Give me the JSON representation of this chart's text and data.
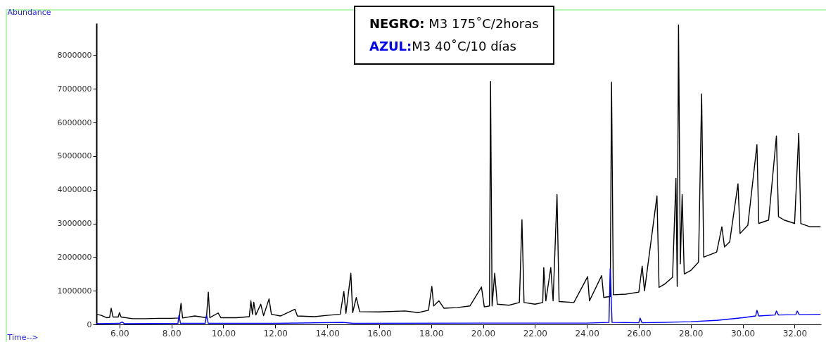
{
  "chart_data": {
    "type": "line",
    "xlabel": "Time-->",
    "ylabel": "Abundance",
    "xlim": [
      5.11,
      33.02
    ],
    "ylim": [
      0,
      8950000
    ],
    "xticks": [
      {
        "value": 6,
        "label": "6.00"
      },
      {
        "value": 8,
        "label": "8.00"
      },
      {
        "value": 10,
        "label": "10.00"
      },
      {
        "value": 12,
        "label": "12.00"
      },
      {
        "value": 14,
        "label": "14.00"
      },
      {
        "value": 16,
        "label": "16.00"
      },
      {
        "value": 18,
        "label": "18.00"
      },
      {
        "value": 20,
        "label": "20.00"
      },
      {
        "value": 22,
        "label": "22.00"
      },
      {
        "value": 24,
        "label": "24.00"
      },
      {
        "value": 26,
        "label": "26.00"
      },
      {
        "value": 28,
        "label": "28.00"
      },
      {
        "value": 30,
        "label": "30.00"
      },
      {
        "value": 32,
        "label": "32.00"
      }
    ],
    "yticks": [
      0,
      1000000,
      2000000,
      3000000,
      4000000,
      5000000,
      6000000,
      7000000,
      8000000
    ],
    "grid": false,
    "legend": "top",
    "marker": "none",
    "line_style": "solid",
    "series": [
      {
        "name": "NEGRO: M3 175˚C/2horas",
        "color": "#000000",
        "x": [
          5.11,
          5.3,
          5.5,
          5.62,
          5.68,
          5.75,
          5.95,
          6.0,
          6.06,
          6.5,
          7.0,
          7.5,
          8.0,
          8.3,
          8.37,
          8.43,
          8.9,
          9.35,
          9.42,
          9.48,
          9.8,
          9.9,
          10.5,
          11.0,
          11.06,
          11.12,
          11.17,
          11.25,
          11.44,
          11.55,
          11.76,
          11.85,
          12.2,
          12.76,
          12.85,
          13.5,
          14.0,
          14.5,
          14.64,
          14.72,
          14.91,
          14.98,
          15.12,
          15.25,
          16.0,
          17.0,
          17.5,
          17.9,
          18.03,
          18.1,
          18.3,
          18.5,
          19.0,
          19.5,
          19.94,
          20.05,
          20.25,
          20.29,
          20.35,
          20.45,
          20.55,
          21.0,
          21.4,
          21.5,
          21.58,
          22.0,
          22.3,
          22.34,
          22.42,
          22.61,
          22.7,
          22.85,
          22.93,
          23.5,
          24.03,
          24.1,
          24.57,
          24.65,
          24.9,
          24.95,
          25.02,
          25.5,
          26.0,
          26.13,
          26.22,
          26.7,
          26.78,
          27.0,
          27.3,
          27.43,
          27.48,
          27.53,
          27.6,
          27.67,
          27.75,
          28.0,
          28.3,
          28.42,
          28.5,
          29.0,
          29.2,
          29.3,
          29.5,
          29.82,
          29.9,
          30.2,
          30.55,
          30.62,
          31.0,
          31.3,
          31.38,
          31.6,
          32.0,
          32.16,
          32.24,
          32.6,
          33.0
        ],
        "values": [
          300000,
          270000,
          200000,
          210000,
          480000,
          220000,
          220000,
          350000,
          220000,
          170000,
          170000,
          180000,
          180000,
          190000,
          630000,
          190000,
          250000,
          200000,
          960000,
          200000,
          340000,
          200000,
          200000,
          230000,
          700000,
          300000,
          660000,
          280000,
          600000,
          260000,
          760000,
          300000,
          250000,
          450000,
          250000,
          230000,
          270000,
          300000,
          980000,
          330000,
          1520000,
          350000,
          800000,
          380000,
          370000,
          400000,
          350000,
          420000,
          1130000,
          550000,
          700000,
          480000,
          500000,
          550000,
          1110000,
          520000,
          550000,
          7220000,
          550000,
          1520000,
          600000,
          570000,
          650000,
          3110000,
          650000,
          600000,
          650000,
          1690000,
          700000,
          1690000,
          700000,
          3860000,
          680000,
          650000,
          1420000,
          700000,
          1450000,
          800000,
          830000,
          7200000,
          880000,
          900000,
          960000,
          1730000,
          1000000,
          3820000,
          1100000,
          1200000,
          1400000,
          4340000,
          1130000,
          8900000,
          1800000,
          3860000,
          1500000,
          1600000,
          1850000,
          6850000,
          2000000,
          2150000,
          2900000,
          2300000,
          2450000,
          4180000,
          2700000,
          2950000,
          5340000,
          3000000,
          3100000,
          5600000,
          3200000,
          3100000,
          3000000,
          5680000,
          3000000,
          2900000,
          2900000
        ]
      },
      {
        "name": "AZUL:M3 40˚C/10 días",
        "color": "#0000ff",
        "x": [
          5.11,
          6.0,
          6.1,
          6.2,
          8.25,
          8.29,
          8.35,
          9.3,
          9.35,
          9.42,
          12.0,
          14.6,
          15.0,
          20.0,
          24.0,
          24.85,
          24.9,
          24.97,
          26.0,
          26.05,
          26.12,
          27.0,
          28.0,
          29.0,
          30.0,
          30.5,
          30.55,
          30.62,
          31.25,
          31.3,
          31.38,
          32.05,
          32.1,
          32.18,
          33.0
        ],
        "values": [
          20000,
          30000,
          70000,
          20000,
          30000,
          270000,
          30000,
          30000,
          270000,
          30000,
          30000,
          60000,
          30000,
          40000,
          40000,
          60000,
          1650000,
          60000,
          50000,
          190000,
          50000,
          60000,
          80000,
          120000,
          200000,
          250000,
          420000,
          250000,
          280000,
          400000,
          280000,
          290000,
          400000,
          290000,
          300000
        ]
      }
    ]
  }
}
